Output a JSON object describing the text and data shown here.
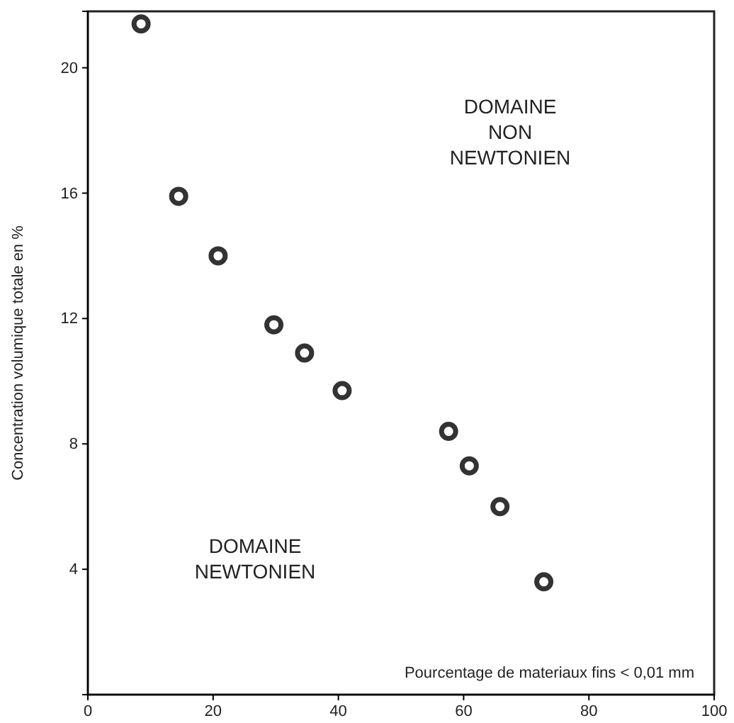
{
  "chart_data": {
    "type": "scatter",
    "xlabel": "Pourcentage de materiaux fins < 0,01 mm",
    "ylabel": "Concentration volumique totale en %",
    "x": [
      8.5,
      14.5,
      20.8,
      29.7,
      34.6,
      40.6,
      57.6,
      60.9,
      65.8,
      72.8
    ],
    "values": [
      21.4,
      15.9,
      14.0,
      11.8,
      10.9,
      9.7,
      8.4,
      7.3,
      6.0,
      3.6
    ],
    "color": "#333333",
    "marker": "circle",
    "xlim": [
      0,
      100
    ],
    "xticks": [
      0,
      20,
      40,
      60,
      80,
      100
    ],
    "ylim": [
      0,
      21.8
    ],
    "yticks": [
      4,
      8,
      12,
      16,
      20
    ],
    "annotations": [
      "DOMAINE\nNON\nNEWTONIEN",
      "DOMAINE\nNEWTONIEN"
    ]
  }
}
